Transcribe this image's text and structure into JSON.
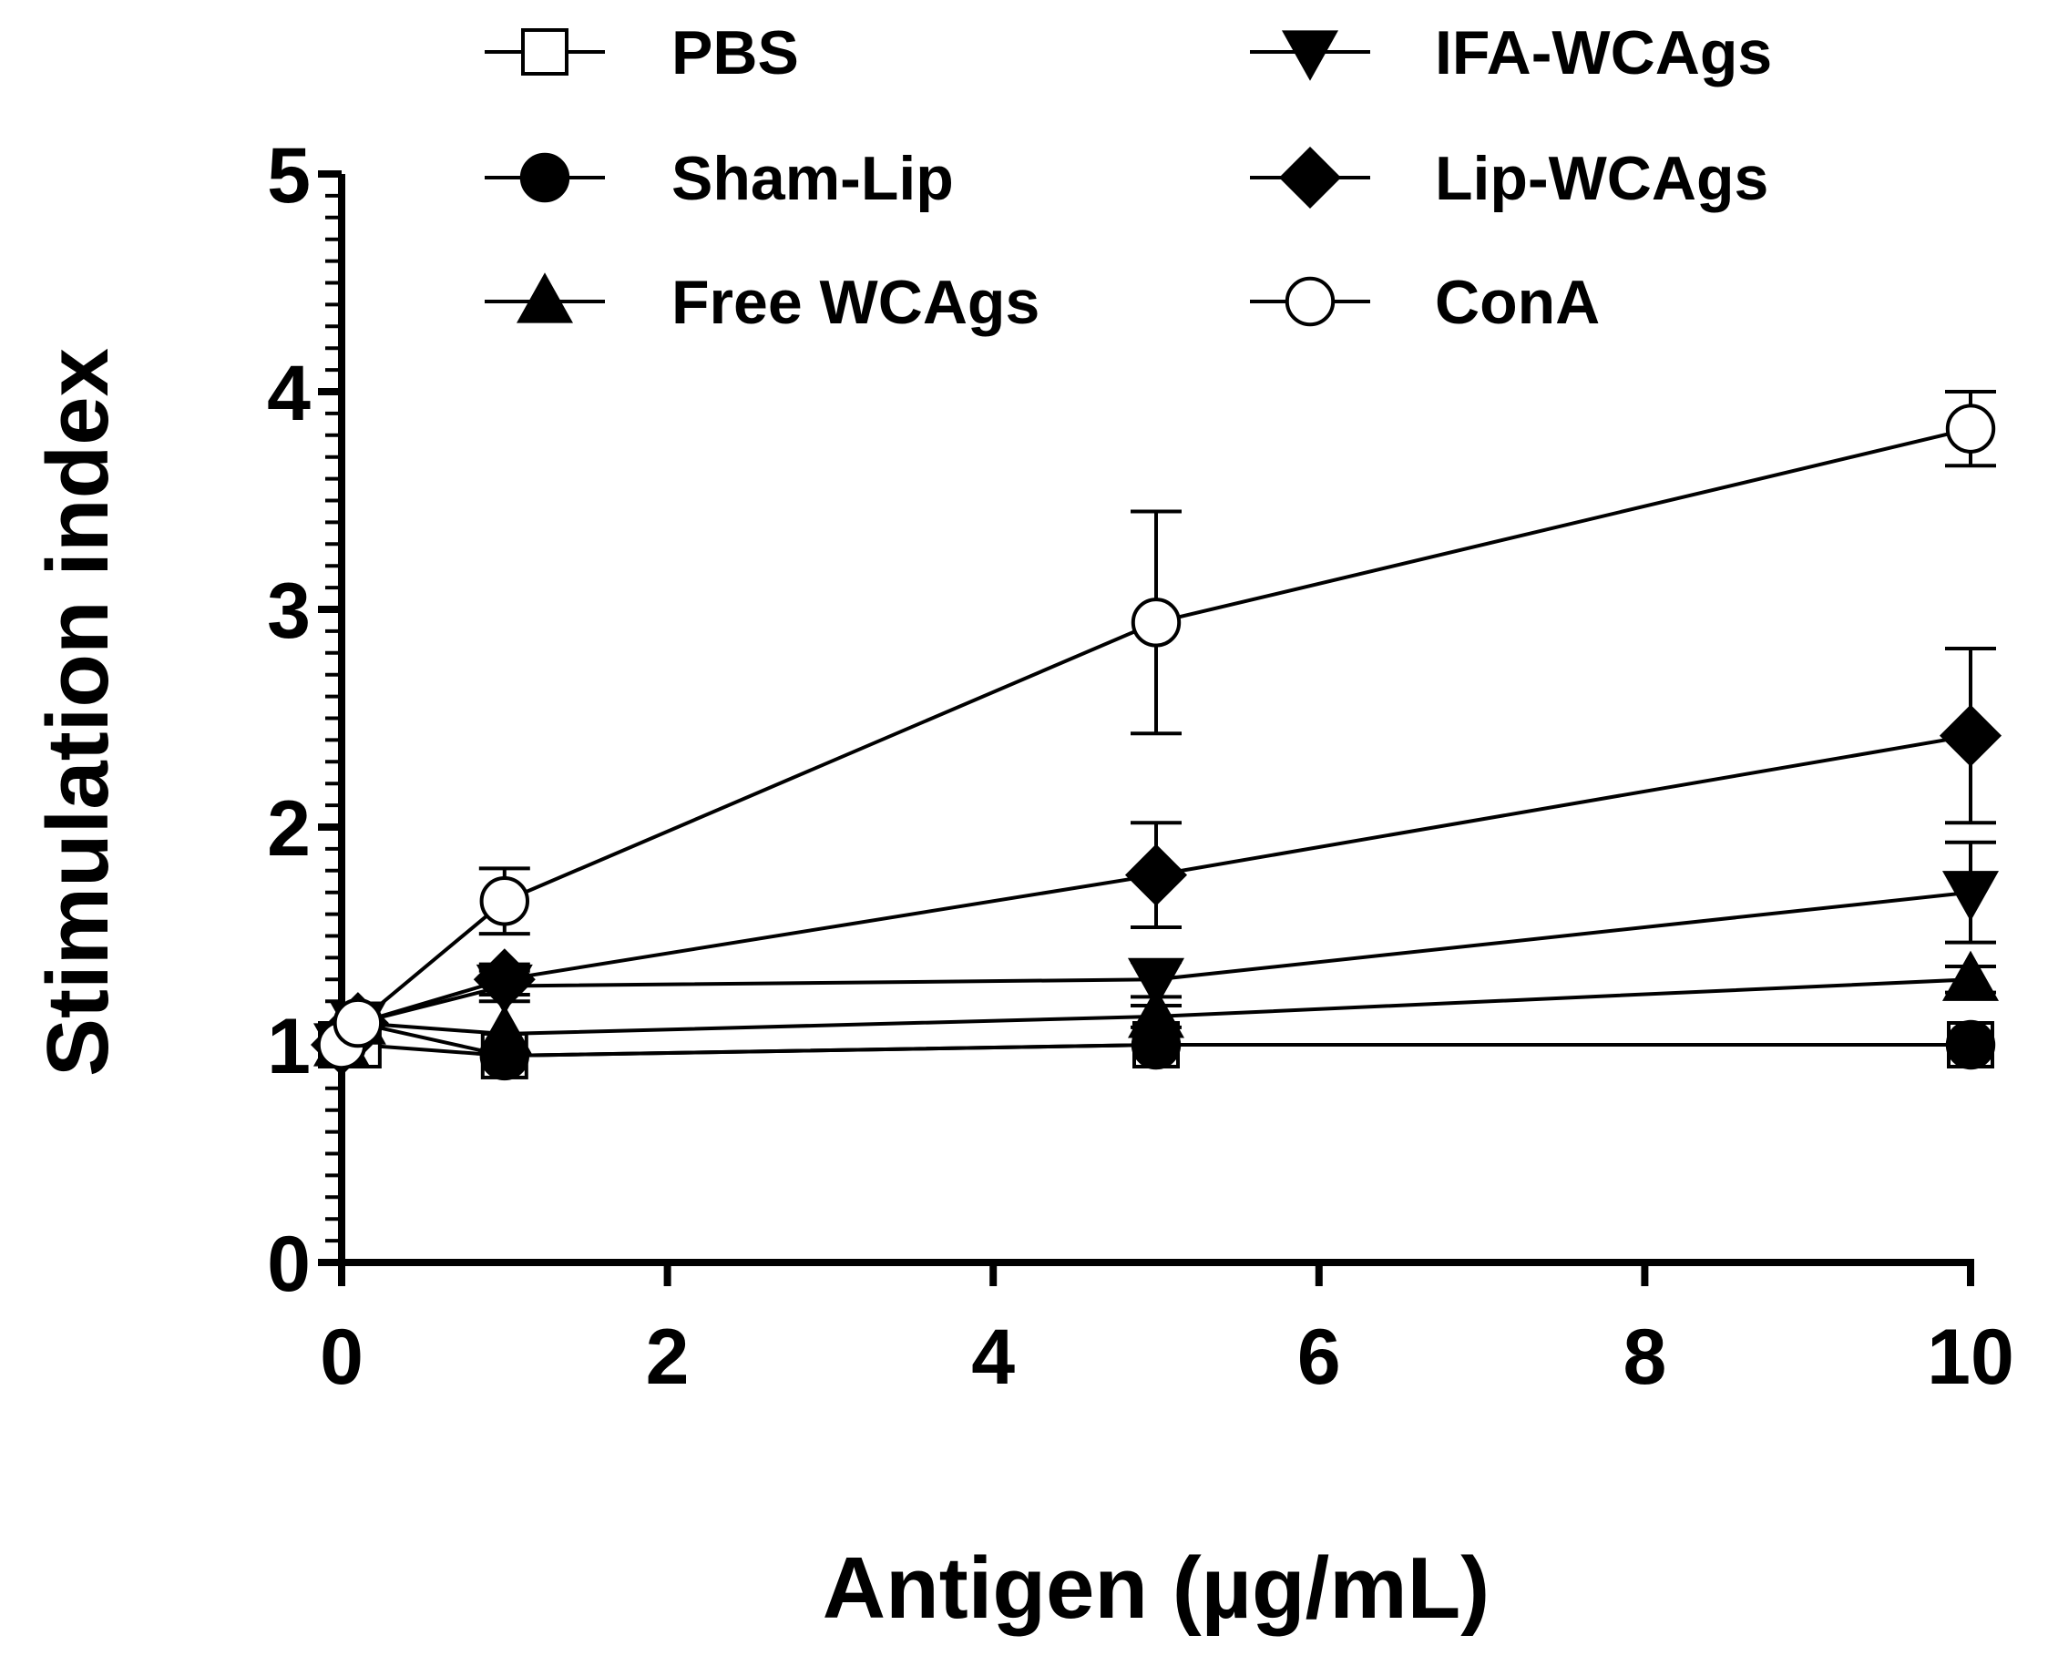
{
  "chart_data": {
    "type": "line",
    "title": "",
    "xlabel": "Antigen (µg/mL)",
    "ylabel": "Stimulation index",
    "xlim": [
      0,
      10
    ],
    "ylim": [
      0,
      5
    ],
    "xticks": [
      0,
      2,
      4,
      6,
      8,
      10
    ],
    "xtick_labels": [
      "0",
      "2",
      "4",
      "6",
      "8",
      "10"
    ],
    "yticks": [
      0,
      1,
      2,
      3,
      4,
      5
    ],
    "ytick_labels": [
      "0",
      "1",
      "2",
      "3",
      "4",
      "5"
    ],
    "x": [
      0,
      0.1,
      1,
      5,
      10
    ],
    "legend_position": "top",
    "series": [
      {
        "name": "PBS",
        "marker": "square-open",
        "y": [
          1.0,
          1.0,
          0.95,
          1.0,
          1.0
        ],
        "err": [
          0.02,
          0.02,
          0.03,
          0.03,
          0.03
        ]
      },
      {
        "name": "Sham-Lip",
        "marker": "circle-filled",
        "y": [
          1.0,
          1.1,
          0.95,
          1.0,
          1.0
        ],
        "err": [
          0.02,
          0.03,
          0.03,
          0.03,
          0.03
        ]
      },
      {
        "name": "Free WCAgs",
        "marker": "triangle-up-filled",
        "y": [
          1.0,
          1.1,
          1.05,
          1.13,
          1.3
        ],
        "err": [
          0.02,
          0.03,
          0.04,
          0.05,
          0.06
        ]
      },
      {
        "name": "IFA-WCAgs",
        "marker": "triangle-down-filled",
        "y": [
          1.0,
          1.1,
          1.27,
          1.3,
          1.7
        ],
        "err": [
          0.02,
          0.03,
          0.07,
          0.08,
          0.23
        ]
      },
      {
        "name": "Lip-WCAgs",
        "marker": "diamond-filled",
        "y": [
          1.0,
          1.1,
          1.3,
          1.78,
          2.42
        ],
        "err": [
          0.02,
          0.03,
          0.07,
          0.24,
          0.4
        ]
      },
      {
        "name": "ConA",
        "marker": "circle-open",
        "y": [
          1.0,
          1.1,
          1.66,
          2.94,
          3.83
        ],
        "err": [
          0.02,
          0.03,
          0.15,
          0.51,
          0.17
        ]
      }
    ]
  }
}
